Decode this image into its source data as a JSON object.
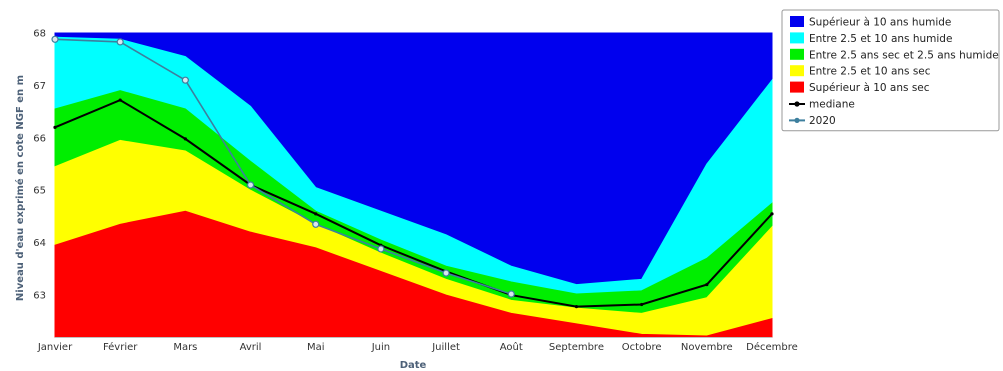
{
  "chart_data": {
    "type": "area",
    "title": "",
    "xlabel": "Date",
    "ylabel": "Niveau d'eau exprimé en cote NGF en m",
    "categories": [
      "Janvier",
      "Février",
      "Mars",
      "Avril",
      "Mai",
      "Juin",
      "Juillet",
      "Août",
      "Septembre",
      "Octobre",
      "Novembre",
      "Décembre"
    ],
    "ylim": [
      62.2,
      68
    ],
    "yticks": [
      63,
      64,
      65,
      66,
      67,
      68
    ],
    "grid": false,
    "legend": "right",
    "bands": [
      {
        "name": "Supérieur à 10 ans humide",
        "color": "#0000ee",
        "values": [
          68,
          68,
          68,
          68,
          68,
          68,
          68,
          68,
          68,
          68,
          68,
          68
        ]
      },
      {
        "name": "Entre 2.5 et 10 ans humide",
        "color": "#00ffff",
        "values": [
          67.92,
          67.88,
          67.55,
          66.6,
          65.05,
          64.6,
          64.15,
          63.55,
          63.2,
          63.3,
          65.5,
          67.1
        ]
      },
      {
        "name": "Entre 2.5 ans sec et 2.5 ans humide",
        "color": "#00ee00",
        "values": [
          66.55,
          66.9,
          66.55,
          65.55,
          64.6,
          64.05,
          63.55,
          63.25,
          63.02,
          63.08,
          63.7,
          64.75
        ]
      },
      {
        "name": "Entre 2.5 et 10 ans sec",
        "color": "#ffff00",
        "values": [
          65.45,
          65.95,
          65.75,
          65.0,
          64.35,
          63.8,
          63.3,
          62.9,
          62.75,
          62.65,
          62.95,
          64.3
        ]
      },
      {
        "name": "Supérieur à 10 ans sec",
        "color": "#ff0000",
        "values": [
          63.95,
          64.35,
          64.6,
          64.2,
          63.9,
          63.45,
          63.0,
          62.65,
          62.45,
          62.25,
          62.22,
          62.55
        ]
      }
    ],
    "series": [
      {
        "name": "mediane",
        "color": "#000000",
        "values": [
          66.2,
          66.72,
          65.98,
          65.1,
          64.55,
          63.95,
          63.45,
          63.0,
          62.78,
          62.82,
          63.2,
          64.55
        ]
      },
      {
        "name": "2020",
        "color": "#3d7f9e",
        "values": [
          67.88,
          67.83,
          67.1,
          65.1,
          64.35,
          63.88,
          63.42,
          63.02,
          null,
          null,
          null,
          null
        ]
      }
    ]
  }
}
